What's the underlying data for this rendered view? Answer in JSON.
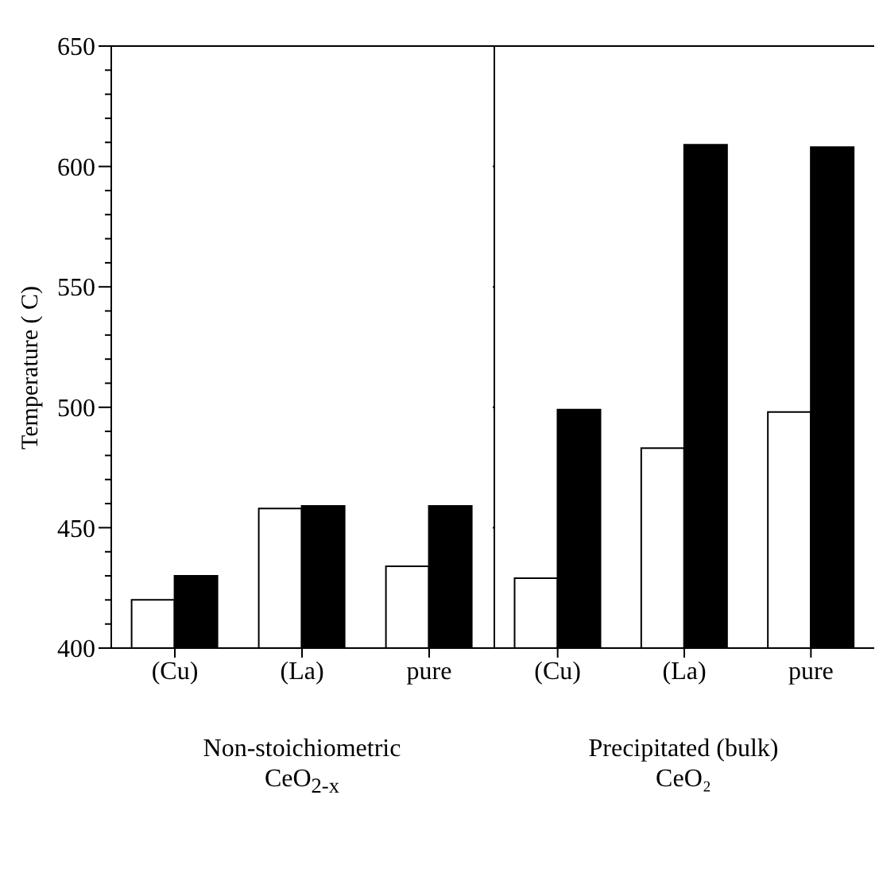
{
  "chart_data": [
    {
      "type": "bar",
      "ylabel": "Temperature ( C)",
      "xlabel": "Non-stoichiometric\nCeO$_{2-x}$",
      "categories": [
        "(Cu)",
        "(La)",
        "pure"
      ],
      "series": [
        {
          "color": "#ffffff",
          "values": [
            420,
            458,
            434
          ]
        },
        {
          "color": "#000000",
          "values": [
            430,
            459,
            459
          ]
        }
      ],
      "ylim": [
        400,
        650
      ],
      "yticks": [
        400,
        {
          "value": 410,
          "label": null
        },
        {
          "value": 420,
          "label": null
        },
        {
          "value": 430,
          "label": null
        },
        {
          "value": 440,
          "label": null
        },
        450,
        {
          "value": 460,
          "label": null
        },
        {
          "value": 470,
          "label": null
        },
        {
          "value": 480,
          "label": null
        },
        {
          "value": 490,
          "label": null
        },
        500,
        {
          "value": 510,
          "label": null
        },
        {
          "value": 520,
          "label": null
        },
        {
          "value": 530,
          "label": null
        },
        {
          "value": 540,
          "label": null
        },
        550,
        {
          "value": 560,
          "label": null
        },
        {
          "value": 570,
          "label": null
        },
        {
          "value": 580,
          "label": null
        },
        {
          "value": 590,
          "label": null
        },
        600,
        {
          "value": 610,
          "label": null
        },
        {
          "value": 620,
          "label": null
        },
        {
          "value": 630,
          "label": null
        },
        {
          "value": 640,
          "label": null
        },
        650
      ]
    },
    {
      "type": "bar",
      "xlabel": "Precipitated (bulk)\nCeO₂",
      "categories": [
        "(Cu)",
        "(La)",
        "pure"
      ],
      "series": [
        {
          "color": "#ffffff",
          "values": [
            429,
            483,
            498
          ]
        },
        {
          "color": "#000000",
          "values": [
            499,
            609,
            608
          ]
        }
      ],
      "ylim": [
        400,
        650
      ],
      "yticks": [
        400,
        450,
        500,
        550,
        600,
        650
      ],
      "tick_labels": "x"
    }
  ]
}
